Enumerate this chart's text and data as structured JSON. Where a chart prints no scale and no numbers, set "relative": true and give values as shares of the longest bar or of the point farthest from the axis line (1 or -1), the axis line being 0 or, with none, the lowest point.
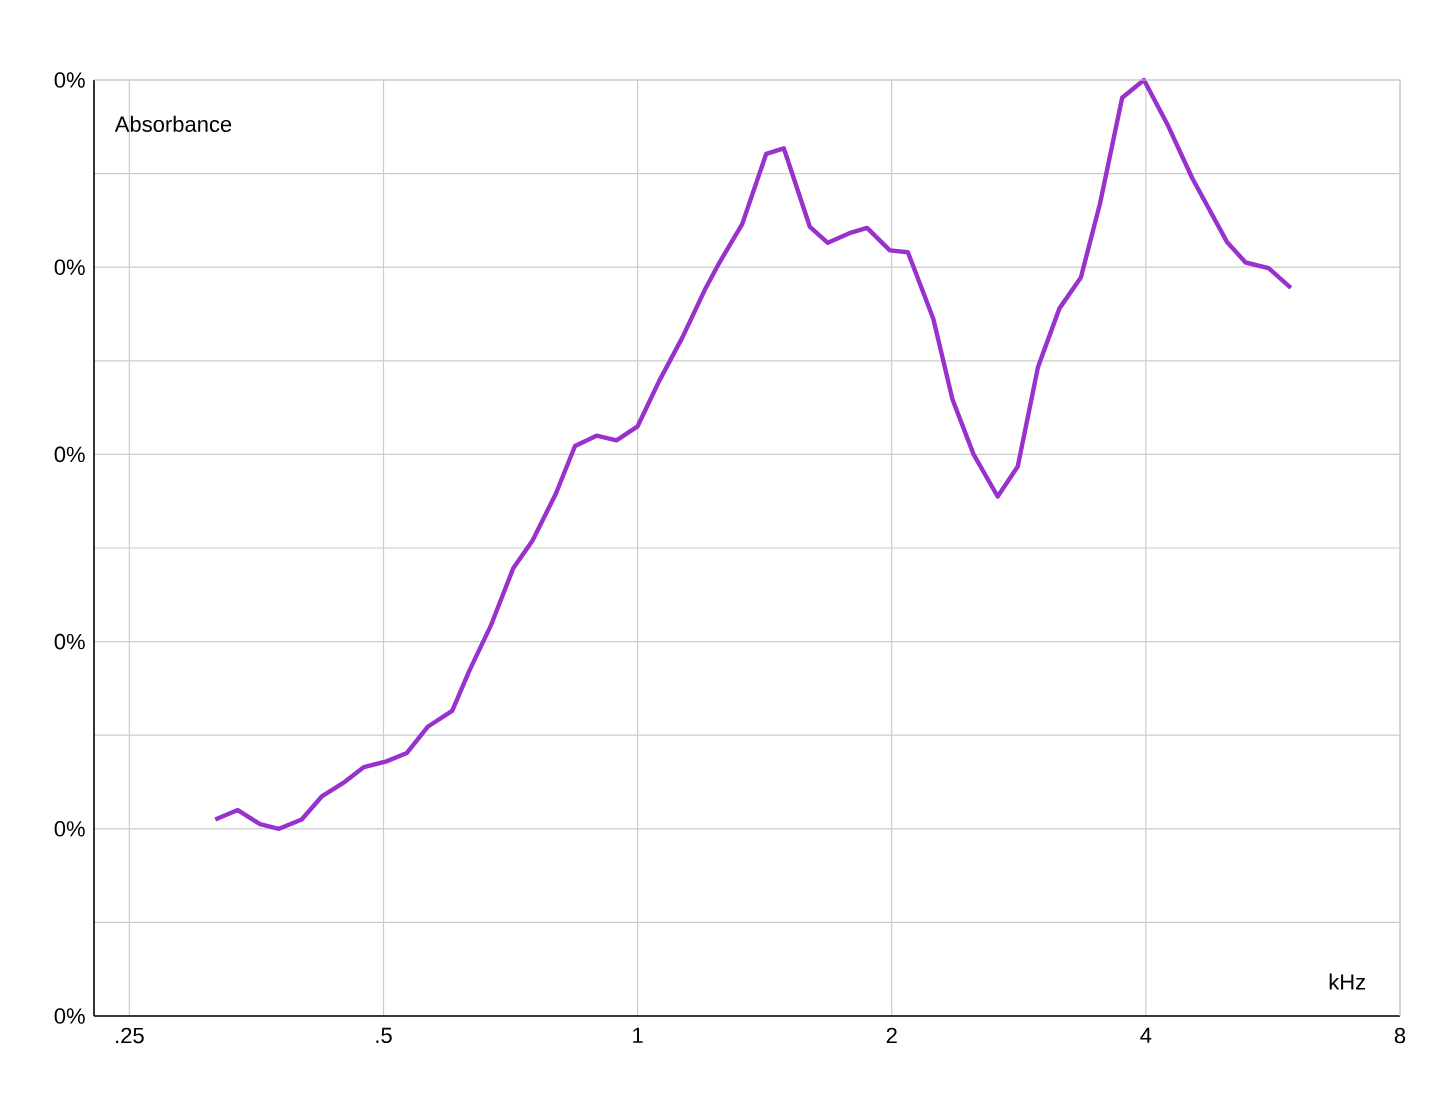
{
  "chart_data": {
    "type": "line",
    "xlabel": "kHz",
    "ylabel": "Absorbance",
    "log": "x",
    "grid": true,
    "marker": "none",
    "line_style": "solid",
    "relative": true,
    "annotations": [
      "0%",
      "0%",
      "0%",
      "0%",
      "0%",
      "0%"
    ],
    "x": [
      0.316,
      0.336,
      0.357,
      0.376,
      0.4,
      0.423,
      0.448,
      0.474,
      0.504,
      0.533,
      0.564,
      0.603,
      0.632,
      0.67,
      0.712,
      0.751,
      0.8,
      0.843,
      0.894,
      0.944,
      1.0,
      1.06,
      1.13,
      1.2,
      1.25,
      1.33,
      1.42,
      1.49,
      1.6,
      1.68,
      1.79,
      1.87,
      1.99,
      2.09,
      2.24,
      2.36,
      2.5,
      2.67,
      2.82,
      2.98,
      3.16,
      3.35,
      3.53,
      3.75,
      3.98,
      4.25,
      4.54,
      4.99,
      5.25,
      5.59,
      5.94
    ],
    "series": [
      {
        "color": "#9932cc",
        "values": [
          0.21,
          0.22,
          0.205,
          0.2,
          0.21,
          0.235,
          0.249,
          0.266,
          0.272,
          0.281,
          0.309,
          0.326,
          0.369,
          0.417,
          0.478,
          0.508,
          0.558,
          0.609,
          0.62,
          0.615,
          0.63,
          0.678,
          0.725,
          0.775,
          0.805,
          0.846,
          0.921,
          0.927,
          0.843,
          0.826,
          0.837,
          0.842,
          0.818,
          0.816,
          0.745,
          0.659,
          0.6,
          0.555,
          0.587,
          0.693,
          0.756,
          0.789,
          0.868,
          0.981,
          1,
          0.951,
          0.895,
          0.827,
          0.805,
          0.799,
          0.778
        ]
      }
    ],
    "xlim": [
      0.227,
      8
    ],
    "xticks": [
      {
        "value": 0.25,
        "label": ".25"
      },
      {
        "value": 0.5,
        "label": ".5"
      },
      1,
      2,
      4,
      8
    ]
  }
}
